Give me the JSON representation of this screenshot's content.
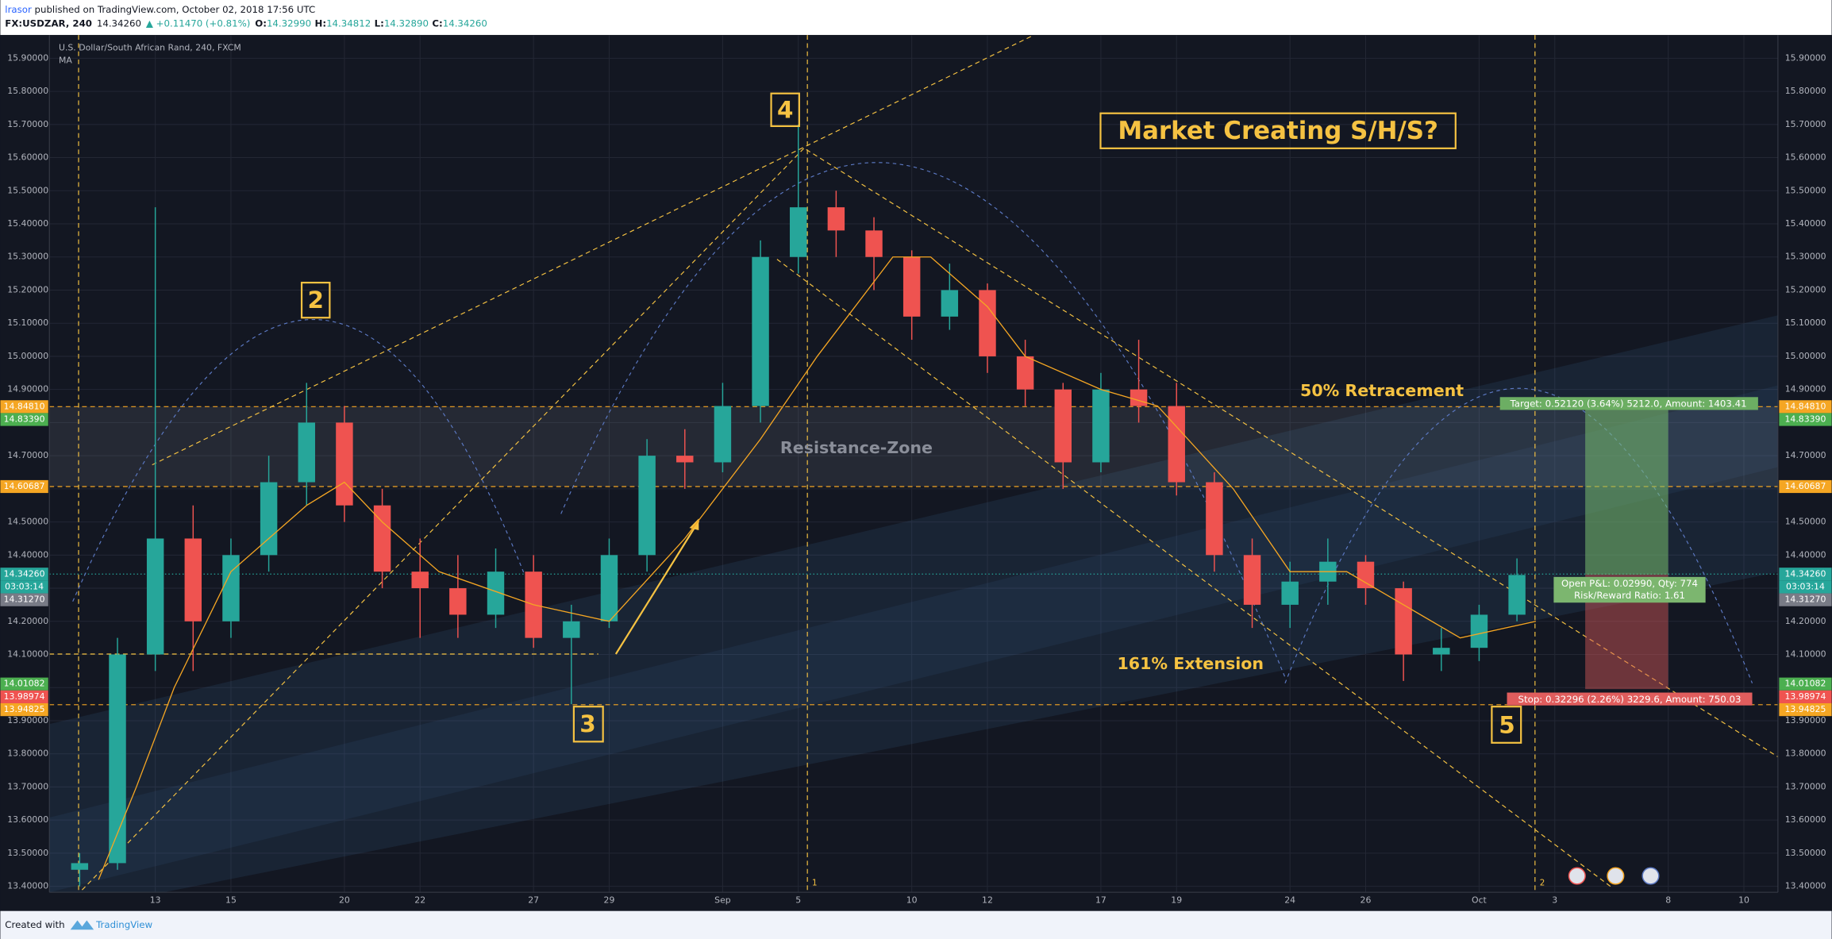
{
  "header": {
    "author": "lrasor",
    "published": " published on TradingView.com, October 02, 2018 17:56 UTC",
    "symbol": "FX:USDZAR, 240",
    "last": "14.34260",
    "change": "▲ +0.11470 (+0.81%)",
    "open_label": "O:",
    "open": "14.32990",
    "high_label": "H:",
    "high": "14.34812",
    "low_label": "L:",
    "low": "14.32890",
    "close_label": "C:",
    "close": "14.34260"
  },
  "chart_data": {
    "type": "candlestick",
    "title": "U.S. Dollar/South African Rand, 240, FXCM",
    "candles": {
      "up_color": "#26a69a",
      "down_color": "#ef5350",
      "x": [
        -2,
        -1,
        0,
        1,
        2,
        3,
        4,
        5,
        6,
        7,
        8,
        9,
        10,
        11,
        12,
        13,
        14,
        15,
        16,
        17,
        18,
        19,
        20,
        21,
        22,
        23,
        24,
        25,
        26,
        27,
        28,
        29,
        30,
        31,
        32,
        33,
        34,
        35,
        36
      ],
      "open": [
        13.45,
        13.47,
        14.1,
        14.45,
        14.2,
        14.4,
        14.62,
        14.8,
        14.55,
        14.35,
        14.3,
        14.22,
        14.35,
        14.15,
        14.2,
        14.4,
        14.7,
        14.68,
        14.85,
        15.3,
        15.45,
        15.38,
        15.3,
        15.12,
        15.2,
        15.0,
        14.9,
        14.68,
        14.9,
        14.85,
        14.62,
        14.4,
        14.25,
        14.32,
        14.38,
        14.3,
        14.1,
        14.12,
        14.22
      ],
      "high": [
        13.5,
        14.15,
        15.45,
        14.55,
        14.45,
        14.7,
        14.92,
        14.85,
        14.6,
        14.45,
        14.4,
        14.42,
        14.4,
        14.25,
        14.45,
        14.75,
        14.78,
        14.92,
        15.35,
        15.7,
        15.5,
        15.42,
        15.32,
        15.28,
        15.22,
        15.05,
        14.92,
        14.95,
        15.05,
        14.92,
        14.65,
        14.45,
        14.38,
        14.45,
        14.4,
        14.32,
        14.18,
        14.25,
        14.39
      ],
      "low": [
        13.4,
        13.45,
        14.05,
        14.05,
        14.15,
        14.35,
        14.55,
        14.5,
        14.3,
        14.15,
        14.15,
        14.18,
        14.12,
        13.95,
        14.18,
        14.35,
        14.6,
        14.65,
        14.8,
        15.25,
        15.3,
        15.2,
        15.05,
        15.08,
        14.95,
        14.85,
        14.6,
        14.65,
        14.8,
        14.58,
        14.35,
        14.18,
        14.18,
        14.25,
        14.25,
        14.02,
        14.05,
        14.08,
        14.2
      ],
      "close": [
        13.47,
        14.1,
        14.45,
        14.2,
        14.4,
        14.62,
        14.8,
        14.55,
        14.35,
        14.3,
        14.22,
        14.35,
        14.15,
        14.2,
        14.4,
        14.7,
        14.68,
        14.85,
        15.3,
        15.45,
        15.38,
        15.3,
        15.12,
        15.2,
        15.0,
        14.9,
        14.68,
        14.9,
        14.85,
        14.62,
        14.4,
        14.25,
        14.32,
        14.38,
        14.3,
        14.1,
        14.12,
        14.22,
        14.34
      ]
    },
    "series": [
      {
        "name": "MA",
        "color": "#f5a623",
        "x": [
          -1.5,
          -0.5,
          0.5,
          2,
          4,
          5,
          6,
          7.5,
          10,
          12,
          14,
          16,
          17.5,
          19.5,
          20.5,
          22,
          23,
          25,
          26.5,
          28.5,
          30,
          31.5,
          33,
          34.5,
          36.5
        ],
        "values": [
          13.42,
          13.7,
          14.0,
          14.35,
          14.55,
          14.62,
          14.5,
          14.35,
          14.25,
          14.2,
          14.45,
          14.75,
          15.0,
          15.3,
          15.3,
          15.15,
          15.0,
          14.9,
          14.85,
          14.6,
          14.35,
          14.35,
          14.25,
          14.15,
          14.2
        ]
      }
    ],
    "levels": [
      {
        "value": 14.8481,
        "label": "14.84810",
        "color": "#f5a623"
      },
      {
        "value": 14.8339,
        "label": "14.83390",
        "color": "#4caf50"
      },
      {
        "value": 14.60687,
        "label": "14.60687",
        "color": "#f5a623"
      },
      {
        "value": 14.3426,
        "label": "14.34260",
        "color": "#26a69a"
      },
      {
        "value": 14.3127,
        "label": "14.31270",
        "color": "#787b86"
      },
      {
        "value": 14.01082,
        "label": "14.01082",
        "color": "#4caf50"
      },
      {
        "value": 13.98974,
        "label": "13.98974",
        "color": "#ef5350"
      },
      {
        "value": 13.94825,
        "label": "13.94825",
        "color": "#f5a623"
      }
    ],
    "countdown": "03:03:14",
    "xlim": [
      -2.8,
      42.9
    ],
    "ylim": [
      13.382,
      15.97
    ],
    "xticks": [
      {
        "value": 0,
        "label": "13"
      },
      {
        "value": 2,
        "label": "15"
      },
      {
        "value": 5,
        "label": "20"
      },
      {
        "value": 7,
        "label": "22"
      },
      {
        "value": 10,
        "label": "27"
      },
      {
        "value": 12,
        "label": "29"
      },
      {
        "value": 15,
        "label": "Sep"
      },
      {
        "value": 17,
        "label": "5"
      },
      {
        "value": 20,
        "label": "10"
      },
      {
        "value": 22,
        "label": "12"
      },
      {
        "value": 25,
        "label": "17"
      },
      {
        "value": 27,
        "label": "19"
      },
      {
        "value": 30,
        "label": "24"
      },
      {
        "value": 32,
        "label": "26"
      },
      {
        "value": 35,
        "label": "Oct"
      },
      {
        "value": 37,
        "label": "3"
      },
      {
        "value": 40,
        "label": "8"
      },
      {
        "value": 42,
        "label": "10"
      }
    ],
    "yticks": [
      {
        "value": 13.4,
        "label": "13.40000"
      },
      {
        "value": 13.5,
        "label": "13.50000"
      },
      {
        "value": 13.6,
        "label": "13.60000"
      },
      {
        "value": 13.7,
        "label": "13.70000"
      },
      {
        "value": 13.8,
        "label": "13.80000"
      },
      {
        "value": 13.9,
        "label": "13.90000"
      },
      {
        "value": 14.0,
        "label": "14.00000"
      },
      {
        "value": 14.1,
        "label": "14.10000"
      },
      {
        "value": 14.2,
        "label": "14.20000"
      },
      {
        "value": 14.3,
        "label": "14.30000"
      },
      {
        "value": 14.4,
        "label": "14.40000"
      },
      {
        "value": 14.5,
        "label": "14.50000"
      },
      {
        "value": 14.6,
        "label": "14.60000"
      },
      {
        "value": 14.7,
        "label": "14.70000"
      },
      {
        "value": 14.8,
        "label": "14.80000"
      },
      {
        "value": 14.9,
        "label": "14.90000"
      },
      {
        "value": 15.0,
        "label": "15.00000"
      },
      {
        "value": 15.1,
        "label": "15.10000"
      },
      {
        "value": 15.2,
        "label": "15.20000"
      },
      {
        "value": 15.3,
        "label": "15.30000"
      },
      {
        "value": 15.4,
        "label": "15.40000"
      },
      {
        "value": 15.5,
        "label": "15.50000"
      },
      {
        "value": 15.6,
        "label": "15.60000"
      },
      {
        "value": 15.7,
        "label": "15.70000"
      },
      {
        "value": 15.8,
        "label": "15.80000"
      },
      {
        "value": 15.9,
        "label": "15.90000"
      }
    ],
    "grid": true,
    "annotations": {
      "wave_2": "2",
      "wave_3": "3",
      "wave_4": "4",
      "wave_5": "5",
      "headline": "Market Creating S/H/S?",
      "retracement": "50% Retracement",
      "extension": "161% Extension",
      "zone": "Resistance-Zone",
      "target": "Target: 0.52120 (3.64%) 5212.0, Amount: 1403.41",
      "stop": "Stop: 0.32296 (2.26%) 3229.6, Amount: 750.03",
      "pnl": "Open P&L: 0.02990, Qty: 774",
      "ratio": "Risk/Reward Ratio: 1.61",
      "marker_1": "1",
      "marker_2": "2"
    }
  },
  "footer": {
    "created_with": "Created with",
    "brand": "TradingView"
  }
}
